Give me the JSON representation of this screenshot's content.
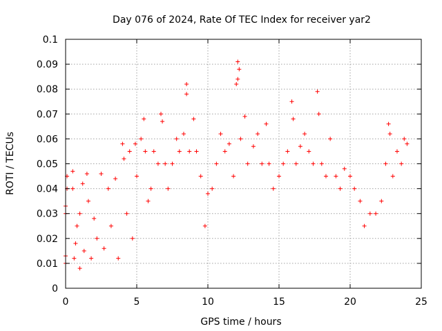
{
  "chart_data": {
    "type": "scatter",
    "title": "Day 076 of 2024, Rate Of TEC Index for receiver yar2",
    "xlabel": "GPS time / hours",
    "ylabel": "ROTI / TECUs",
    "xlim": [
      0,
      25
    ],
    "ylim": [
      0,
      0.1
    ],
    "xticks": [
      "0",
      "5",
      "10",
      "15",
      "20",
      "25"
    ],
    "yticks": [
      "0",
      "0.01",
      "0.02",
      "0.03",
      "0.04",
      "0.05",
      "0.06",
      "0.07",
      "0.08",
      "0.09",
      "0.1"
    ],
    "grid": true,
    "marker": "plus",
    "color": "#ff0000",
    "series": [
      {
        "points": [
          [
            0.0,
            0.01
          ],
          [
            0.0,
            0.013
          ],
          [
            0.0,
            0.033
          ],
          [
            0.1,
            0.045
          ],
          [
            0.1,
            0.04
          ],
          [
            0.0,
            0.03
          ],
          [
            0.5,
            0.04
          ],
          [
            0.5,
            0.047
          ],
          [
            0.6,
            0.012
          ],
          [
            0.7,
            0.018
          ],
          [
            0.8,
            0.025
          ],
          [
            1.0,
            0.03
          ],
          [
            1.0,
            0.008
          ],
          [
            1.2,
            0.042
          ],
          [
            1.3,
            0.015
          ],
          [
            1.5,
            0.046
          ],
          [
            1.6,
            0.035
          ],
          [
            1.8,
            0.012
          ],
          [
            2.0,
            0.028
          ],
          [
            2.2,
            0.02
          ],
          [
            2.5,
            0.046
          ],
          [
            2.7,
            0.016
          ],
          [
            3.0,
            0.04
          ],
          [
            3.2,
            0.025
          ],
          [
            3.5,
            0.044
          ],
          [
            3.7,
            0.012
          ],
          [
            4.0,
            0.058
          ],
          [
            4.1,
            0.052
          ],
          [
            4.3,
            0.03
          ],
          [
            4.5,
            0.055
          ],
          [
            4.7,
            0.02
          ],
          [
            4.9,
            0.058
          ],
          [
            5.0,
            0.045
          ],
          [
            5.3,
            0.06
          ],
          [
            5.5,
            0.068
          ],
          [
            5.6,
            0.055
          ],
          [
            5.8,
            0.035
          ],
          [
            6.0,
            0.04
          ],
          [
            6.2,
            0.055
          ],
          [
            6.5,
            0.05
          ],
          [
            6.7,
            0.07
          ],
          [
            6.8,
            0.067
          ],
          [
            7.0,
            0.05
          ],
          [
            7.2,
            0.04
          ],
          [
            7.5,
            0.05
          ],
          [
            7.8,
            0.06
          ],
          [
            8.0,
            0.055
          ],
          [
            8.3,
            0.062
          ],
          [
            8.5,
            0.082
          ],
          [
            8.5,
            0.078
          ],
          [
            8.7,
            0.055
          ],
          [
            9.0,
            0.068
          ],
          [
            9.2,
            0.055
          ],
          [
            9.5,
            0.045
          ],
          [
            9.8,
            0.025
          ],
          [
            10.0,
            0.038
          ],
          [
            10.3,
            0.04
          ],
          [
            10.6,
            0.05
          ],
          [
            10.9,
            0.062
          ],
          [
            11.2,
            0.055
          ],
          [
            11.5,
            0.058
          ],
          [
            11.8,
            0.045
          ],
          [
            12.1,
            0.091
          ],
          [
            12.2,
            0.088
          ],
          [
            12.1,
            0.084
          ],
          [
            12.0,
            0.082
          ],
          [
            12.3,
            0.06
          ],
          [
            12.6,
            0.069
          ],
          [
            12.8,
            0.05
          ],
          [
            13.2,
            0.057
          ],
          [
            13.5,
            0.062
          ],
          [
            13.8,
            0.05
          ],
          [
            14.1,
            0.066
          ],
          [
            14.3,
            0.05
          ],
          [
            14.6,
            0.04
          ],
          [
            15.0,
            0.045
          ],
          [
            15.3,
            0.05
          ],
          [
            15.6,
            0.055
          ],
          [
            15.9,
            0.075
          ],
          [
            16.0,
            0.068
          ],
          [
            16.2,
            0.05
          ],
          [
            16.5,
            0.057
          ],
          [
            16.8,
            0.062
          ],
          [
            17.1,
            0.055
          ],
          [
            17.4,
            0.05
          ],
          [
            17.7,
            0.079
          ],
          [
            17.8,
            0.07
          ],
          [
            18.0,
            0.05
          ],
          [
            18.3,
            0.045
          ],
          [
            18.6,
            0.06
          ],
          [
            19.0,
            0.045
          ],
          [
            19.3,
            0.04
          ],
          [
            19.6,
            0.048
          ],
          [
            20.0,
            0.045
          ],
          [
            20.3,
            0.04
          ],
          [
            20.7,
            0.035
          ],
          [
            21.0,
            0.025
          ],
          [
            21.4,
            0.03
          ],
          [
            21.8,
            0.03
          ],
          [
            22.2,
            0.035
          ],
          [
            22.5,
            0.05
          ],
          [
            22.7,
            0.066
          ],
          [
            22.8,
            0.062
          ],
          [
            23.0,
            0.045
          ],
          [
            23.3,
            0.055
          ],
          [
            23.6,
            0.05
          ],
          [
            23.8,
            0.06
          ],
          [
            24.0,
            0.058
          ]
        ]
      }
    ]
  }
}
